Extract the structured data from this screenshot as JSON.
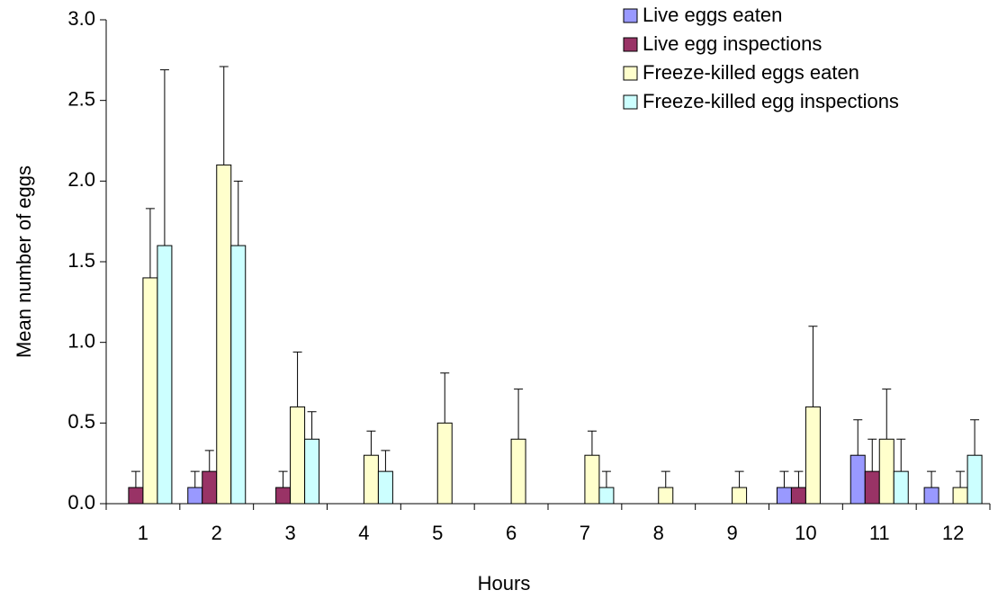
{
  "chart_data": {
    "type": "bar",
    "x_label": "Hours",
    "y_label": "Mean number of eggs",
    "categories": [
      "1",
      "2",
      "3",
      "4",
      "5",
      "6",
      "7",
      "8",
      "9",
      "10",
      "11",
      "12"
    ],
    "series": [
      {
        "name": "Live eggs eaten",
        "color": "#9999ff",
        "values": [
          0,
          0.1,
          0,
          0,
          0,
          0,
          0,
          0,
          0,
          0.1,
          0.3,
          0.1
        ],
        "errors": [
          0,
          0.1,
          0,
          0,
          0,
          0,
          0,
          0,
          0,
          0.1,
          0.22,
          0.1
        ]
      },
      {
        "name": "Live egg inspections",
        "color": "#993366",
        "values": [
          0.1,
          0.2,
          0.1,
          0,
          0,
          0,
          0,
          0,
          0,
          0.1,
          0.2,
          0
        ],
        "errors": [
          0.1,
          0.13,
          0.1,
          0,
          0,
          0,
          0,
          0,
          0,
          0.1,
          0.2,
          0
        ]
      },
      {
        "name": "Freeze-killed eggs eaten",
        "color": "#ffffcc",
        "values": [
          1.4,
          2.1,
          0.6,
          0.3,
          0.5,
          0.4,
          0.3,
          0.1,
          0.1,
          0.6,
          0.4,
          0.1
        ],
        "errors": [
          0.43,
          0.61,
          0.34,
          0.15,
          0.31,
          0.31,
          0.15,
          0.1,
          0.1,
          0.5,
          0.31,
          0.1
        ]
      },
      {
        "name": "Freeze-killed egg inspections",
        "color": "#ccffff",
        "values": [
          1.6,
          1.6,
          0.4,
          0.2,
          0,
          0,
          0.1,
          0,
          0,
          0,
          0.2,
          0.3
        ],
        "errors": [
          1.09,
          0.4,
          0.17,
          0.13,
          0,
          0,
          0.1,
          0,
          0,
          0,
          0.2,
          0.22
        ]
      }
    ],
    "ylim": [
      0,
      3
    ],
    "yticks": [
      {
        "value": 0,
        "label": "0.0"
      },
      {
        "value": 0.5,
        "label": "0.5"
      },
      {
        "value": 1,
        "label": "1.0"
      },
      {
        "value": 1.5,
        "label": "1.5"
      },
      {
        "value": 2,
        "label": "2.0"
      },
      {
        "value": 2.5,
        "label": "2.5"
      },
      {
        "value": 3,
        "label": "3.0"
      }
    ],
    "grid": false,
    "legend": "top-right"
  }
}
